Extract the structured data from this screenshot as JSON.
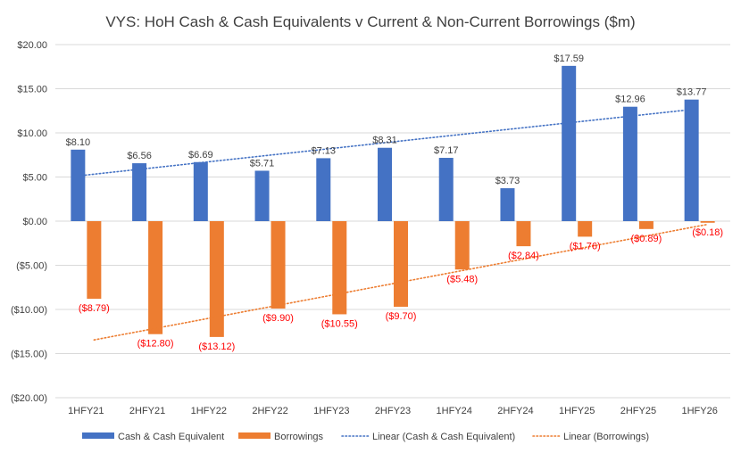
{
  "chart_data": {
    "type": "bar",
    "title": "VYS: HoH Cash & Cash Equivalents v Current & Non-Current Borrowings ($m)",
    "categories": [
      "1HFY21",
      "2HFY21",
      "1HFY22",
      "2HFY22",
      "1HFY23",
      "2HFY23",
      "1HFY24",
      "2HFY24",
      "1HFY25",
      "2HFY25",
      "1HFY26"
    ],
    "series": [
      {
        "name": "Cash & Cash Equivalent",
        "color": "#4472C4",
        "values": [
          8.1,
          6.56,
          6.69,
          5.71,
          7.13,
          8.31,
          7.17,
          3.73,
          17.59,
          12.96,
          13.77
        ],
        "labels": [
          "$8.10",
          "$6.56",
          "$6.69",
          "$5.71",
          "$7.13",
          "$8.31",
          "$7.17",
          "$3.73",
          "$17.59",
          "$12.96",
          "$13.77"
        ],
        "label_color": "#404040"
      },
      {
        "name": "Borrowings",
        "color": "#ED7D31",
        "values": [
          -8.79,
          -12.8,
          -13.12,
          -9.9,
          -10.55,
          -9.7,
          -5.48,
          -2.84,
          -1.76,
          -0.89,
          -0.18
        ],
        "labels": [
          "($8.79)",
          "($12.80)",
          "($13.12)",
          "($9.90)",
          "($10.55)",
          "($9.70)",
          "($5.48)",
          "($2.84)",
          "($1.76)",
          "($0.89)",
          "($0.18)"
        ],
        "label_color": "#FF0000"
      }
    ],
    "trendlines": [
      {
        "name": "Linear (Cash & Cash Equivalent)",
        "series_index": 0,
        "color": "#4472C4",
        "style": "dotted"
      },
      {
        "name": "Linear (Borrowings)",
        "series_index": 1,
        "color": "#ED7D31",
        "style": "dotted"
      }
    ],
    "y_ticks": [
      "$20.00",
      "$15.00",
      "$10.00",
      "$5.00",
      "$0.00",
      "($5.00)",
      "($10.00)",
      "($15.00)",
      "($20.00)"
    ],
    "y_tick_values": [
      20,
      15,
      10,
      5,
      0,
      -5,
      -10,
      -15,
      -20
    ],
    "ylim": [
      -20,
      20
    ],
    "grid": true,
    "legend_position": "bottom",
    "xlabel": "",
    "ylabel": ""
  }
}
